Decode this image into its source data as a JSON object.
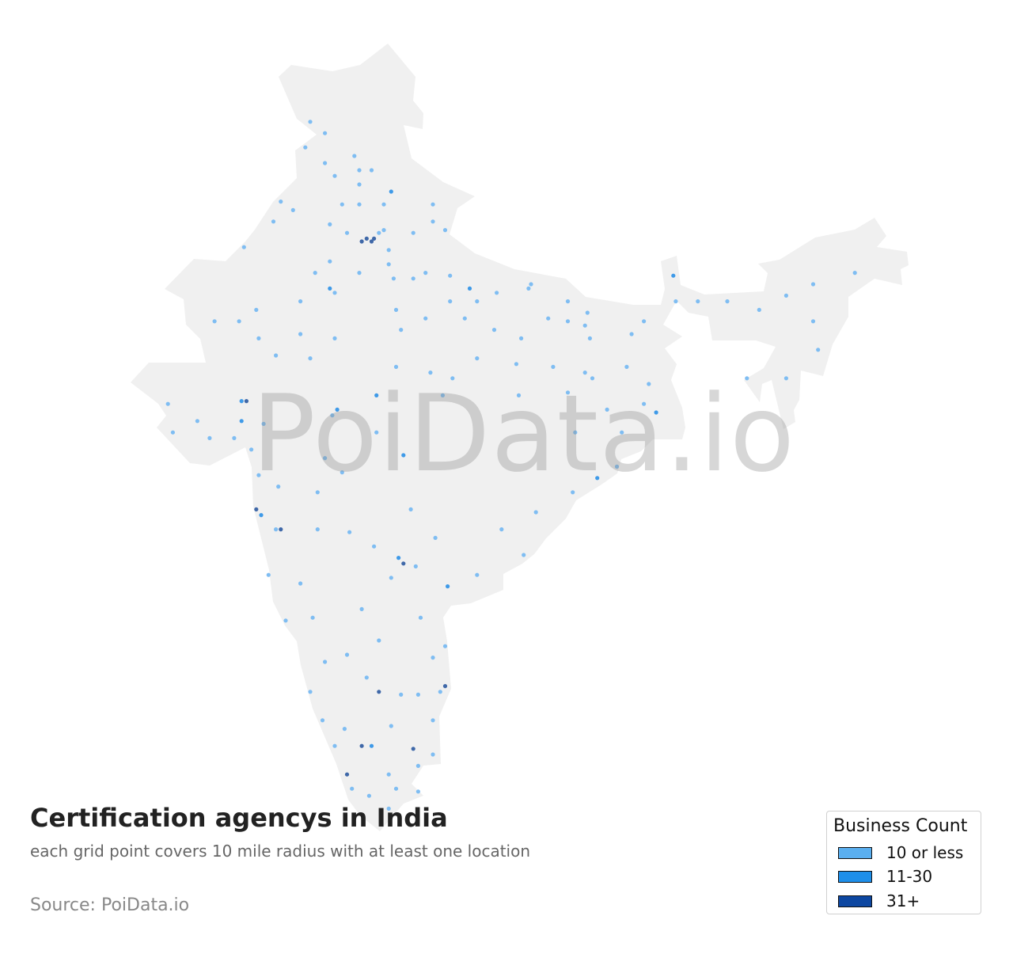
{
  "title": "Certification agencys in India",
  "subtitle": "each grid point covers 10 mile radius with at least one location",
  "source": "Source: PoiData.io",
  "watermark": "PoiData.io",
  "legend": {
    "title": "Business Count",
    "items": [
      {
        "label": "10 or less",
        "color": "#5aaff0"
      },
      {
        "label": "11-30",
        "color": "#1e8fea"
      },
      {
        "label": "31+",
        "color": "#0d47a1"
      }
    ]
  },
  "colors": {
    "land": "#f0f0f0",
    "dot_low": "#7fbdf2",
    "dot_mid": "#3f9ae8",
    "dot_high": "#3f68a8"
  },
  "chart_data": {
    "type": "scatter",
    "region": "India",
    "point_format": [
      "lon",
      "lat",
      "category"
    ],
    "categories": [
      "10 or less",
      "11-30",
      "31+"
    ],
    "points": [
      [
        75.0,
        32.8,
        0
      ],
      [
        75.6,
        32.4,
        0
      ],
      [
        74.8,
        31.9,
        0
      ],
      [
        76.8,
        31.6,
        0
      ],
      [
        75.6,
        31.35,
        0
      ],
      [
        76.0,
        30.9,
        0
      ],
      [
        77.0,
        31.1,
        0
      ],
      [
        77.5,
        31.1,
        0
      ],
      [
        77.0,
        30.6,
        0
      ],
      [
        78.3,
        30.35,
        1
      ],
      [
        76.3,
        29.9,
        0
      ],
      [
        77.0,
        29.9,
        0
      ],
      [
        78.0,
        29.9,
        0
      ],
      [
        80.0,
        29.9,
        0
      ],
      [
        73.8,
        30.0,
        0
      ],
      [
        74.3,
        29.7,
        0
      ],
      [
        73.5,
        29.3,
        0
      ],
      [
        75.8,
        29.2,
        0
      ],
      [
        76.5,
        28.9,
        0
      ],
      [
        77.3,
        28.7,
        2
      ],
      [
        77.6,
        28.7,
        2
      ],
      [
        77.5,
        28.6,
        2
      ],
      [
        77.1,
        28.6,
        2
      ],
      [
        77.8,
        28.9,
        0
      ],
      [
        78.2,
        28.3,
        0
      ],
      [
        78.0,
        29.0,
        0
      ],
      [
        79.2,
        28.9,
        0
      ],
      [
        80.0,
        29.3,
        0
      ],
      [
        80.5,
        29.0,
        0
      ],
      [
        72.3,
        28.4,
        0
      ],
      [
        75.8,
        27.9,
        0
      ],
      [
        77.0,
        27.5,
        0
      ],
      [
        78.2,
        27.8,
        0
      ],
      [
        78.4,
        27.3,
        0
      ],
      [
        79.2,
        27.3,
        0
      ],
      [
        79.7,
        27.5,
        0
      ],
      [
        80.7,
        27.4,
        0
      ],
      [
        75.2,
        27.5,
        0
      ],
      [
        75.8,
        26.95,
        1
      ],
      [
        76.0,
        26.8,
        0
      ],
      [
        81.5,
        26.95,
        1
      ],
      [
        80.7,
        26.5,
        0
      ],
      [
        81.8,
        26.5,
        0
      ],
      [
        82.6,
        26.8,
        0
      ],
      [
        83.9,
        26.95,
        0
      ],
      [
        84.0,
        27.1,
        0
      ],
      [
        85.5,
        26.5,
        0
      ],
      [
        86.3,
        26.1,
        0
      ],
      [
        74.6,
        26.5,
        0
      ],
      [
        72.8,
        26.2,
        0
      ],
      [
        71.1,
        25.8,
        0
      ],
      [
        72.1,
        25.8,
        0
      ],
      [
        72.9,
        25.2,
        0
      ],
      [
        73.6,
        24.6,
        0
      ],
      [
        74.6,
        25.35,
        0
      ],
      [
        76.0,
        25.2,
        0
      ],
      [
        75.0,
        24.5,
        0
      ],
      [
        78.5,
        26.2,
        0
      ],
      [
        78.7,
        25.5,
        0
      ],
      [
        79.7,
        25.9,
        0
      ],
      [
        81.3,
        25.9,
        0
      ],
      [
        82.5,
        25.5,
        0
      ],
      [
        83.6,
        25.2,
        0
      ],
      [
        84.7,
        25.9,
        0
      ],
      [
        85.5,
        25.8,
        0
      ],
      [
        86.2,
        25.65,
        0
      ],
      [
        86.4,
        25.2,
        0
      ],
      [
        88.1,
        25.35,
        0
      ],
      [
        88.6,
        25.8,
        0
      ],
      [
        89.8,
        27.4,
        1
      ],
      [
        89.9,
        26.5,
        0
      ],
      [
        90.8,
        26.5,
        0
      ],
      [
        92.0,
        26.5,
        0
      ],
      [
        93.3,
        26.2,
        0
      ],
      [
        94.4,
        26.7,
        0
      ],
      [
        95.5,
        27.1,
        0
      ],
      [
        97.2,
        27.5,
        0
      ],
      [
        95.5,
        25.8,
        0
      ],
      [
        95.7,
        24.8,
        0
      ],
      [
        94.4,
        23.8,
        0
      ],
      [
        92.8,
        23.8,
        0
      ],
      [
        87.9,
        24.2,
        0
      ],
      [
        88.8,
        23.6,
        0
      ],
      [
        89.1,
        22.6,
        1
      ],
      [
        88.6,
        22.9,
        0
      ],
      [
        86.5,
        23.8,
        0
      ],
      [
        86.2,
        24.0,
        0
      ],
      [
        84.9,
        24.2,
        0
      ],
      [
        83.4,
        24.3,
        0
      ],
      [
        81.8,
        24.5,
        0
      ],
      [
        80.8,
        23.8,
        0
      ],
      [
        79.9,
        24.0,
        0
      ],
      [
        78.5,
        24.2,
        0
      ],
      [
        77.7,
        23.2,
        1
      ],
      [
        80.4,
        23.2,
        0
      ],
      [
        83.5,
        23.2,
        0
      ],
      [
        85.5,
        23.3,
        0
      ],
      [
        87.1,
        22.7,
        0
      ],
      [
        85.8,
        21.9,
        0
      ],
      [
        87.7,
        21.9,
        0
      ],
      [
        86.7,
        20.3,
        1
      ],
      [
        87.5,
        20.7,
        0
      ],
      [
        85.7,
        19.8,
        0
      ],
      [
        84.2,
        19.1,
        0
      ],
      [
        82.8,
        18.5,
        0
      ],
      [
        83.7,
        17.6,
        0
      ],
      [
        81.8,
        16.9,
        0
      ],
      [
        80.6,
        16.5,
        1
      ],
      [
        80.1,
        18.2,
        0
      ],
      [
        79.1,
        19.2,
        0
      ],
      [
        78.8,
        21.1,
        1
      ],
      [
        77.7,
        21.9,
        0
      ],
      [
        76.1,
        22.7,
        1
      ],
      [
        75.9,
        22.5,
        0
      ],
      [
        75.6,
        21.0,
        0
      ],
      [
        76.3,
        20.5,
        0
      ],
      [
        72.2,
        23.0,
        1
      ],
      [
        72.4,
        23.0,
        2
      ],
      [
        70.4,
        22.3,
        0
      ],
      [
        69.2,
        22.9,
        0
      ],
      [
        69.4,
        21.9,
        0
      ],
      [
        70.9,
        21.7,
        0
      ],
      [
        71.9,
        21.7,
        0
      ],
      [
        72.6,
        21.3,
        0
      ],
      [
        73.1,
        22.2,
        0
      ],
      [
        72.2,
        22.3,
        1
      ],
      [
        72.9,
        20.4,
        0
      ],
      [
        73.7,
        20.0,
        0
      ],
      [
        75.3,
        19.8,
        0
      ],
      [
        72.8,
        19.2,
        2
      ],
      [
        73.0,
        19.0,
        1
      ],
      [
        73.8,
        18.5,
        2
      ],
      [
        73.6,
        18.5,
        0
      ],
      [
        75.3,
        18.5,
        0
      ],
      [
        76.6,
        18.4,
        0
      ],
      [
        77.6,
        17.9,
        0
      ],
      [
        78.8,
        17.3,
        2
      ],
      [
        78.6,
        17.5,
        1
      ],
      [
        78.3,
        16.8,
        0
      ],
      [
        79.3,
        17.2,
        0
      ],
      [
        77.1,
        15.7,
        0
      ],
      [
        75.1,
        15.4,
        0
      ],
      [
        74.0,
        15.3,
        0
      ],
      [
        73.3,
        16.9,
        0
      ],
      [
        74.6,
        16.6,
        0
      ],
      [
        75.6,
        13.85,
        0
      ],
      [
        76.5,
        14.1,
        0
      ],
      [
        77.8,
        14.6,
        0
      ],
      [
        79.5,
        15.4,
        0
      ],
      [
        80.5,
        14.4,
        0
      ],
      [
        80.0,
        14.0,
        0
      ],
      [
        77.8,
        12.8,
        2
      ],
      [
        77.3,
        13.3,
        0
      ],
      [
        80.5,
        13.0,
        2
      ],
      [
        80.3,
        12.8,
        0
      ],
      [
        79.4,
        12.7,
        0
      ],
      [
        78.7,
        12.7,
        0
      ],
      [
        80.0,
        11.8,
        0
      ],
      [
        78.3,
        11.6,
        0
      ],
      [
        77.5,
        10.9,
        1
      ],
      [
        77.1,
        10.9,
        2
      ],
      [
        76.0,
        10.9,
        0
      ],
      [
        76.4,
        11.5,
        0
      ],
      [
        75.0,
        12.8,
        0
      ],
      [
        75.5,
        11.8,
        0
      ],
      [
        76.5,
        9.9,
        2
      ],
      [
        76.7,
        9.4,
        0
      ],
      [
        77.4,
        9.15,
        0
      ],
      [
        78.2,
        9.9,
        0
      ],
      [
        79.2,
        10.8,
        2
      ],
      [
        79.4,
        10.2,
        0
      ],
      [
        80.0,
        10.6,
        0
      ],
      [
        78.2,
        8.7,
        0
      ],
      [
        78.5,
        9.4,
        0
      ],
      [
        79.4,
        9.3,
        0
      ]
    ]
  }
}
